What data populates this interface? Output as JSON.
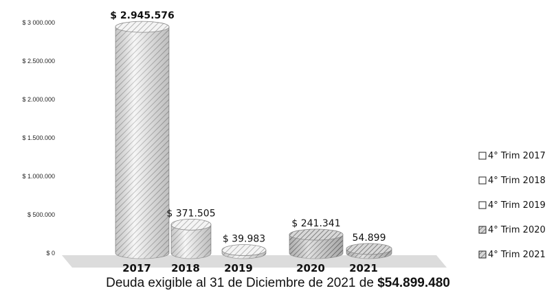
{
  "chart_data": {
    "type": "bar",
    "categories": [
      "2017",
      "2018",
      "2019",
      "2020",
      "2021"
    ],
    "values": [
      2945576,
      371505,
      39983,
      241341,
      54899
    ],
    "data_labels": [
      "$ 2.945.576",
      "$ 371.505",
      "$ 39.983",
      "$ 241.341",
      "54.899"
    ],
    "ylim": [
      0,
      3000000
    ],
    "yticks": [
      0,
      500000,
      1000000,
      1500000,
      2000000,
      2500000,
      3000000
    ],
    "ytick_labels": [
      "$ 0",
      "$ 500.000",
      "$ 1.000.000",
      "$ 1.500.000",
      "$ 2.000.000",
      "$ 2.500.000",
      "$ 3 000.000"
    ],
    "legend": {
      "placement": "right",
      "entries": [
        "4° Trim 2017",
        "4° Trim 2018",
        "4° Trim 2019",
        "4° Trim 2020",
        "4° Trim 2021"
      ]
    },
    "grid": false
  },
  "footer": {
    "text": "Deuda exigible al 31 de Diciembre de 2021 de ",
    "amount": "$54.899.480"
  },
  "colors": {
    "bar_fill": "#f2f2f2",
    "hatch": "#8a8a8a",
    "floor": "#d9d9d9"
  }
}
